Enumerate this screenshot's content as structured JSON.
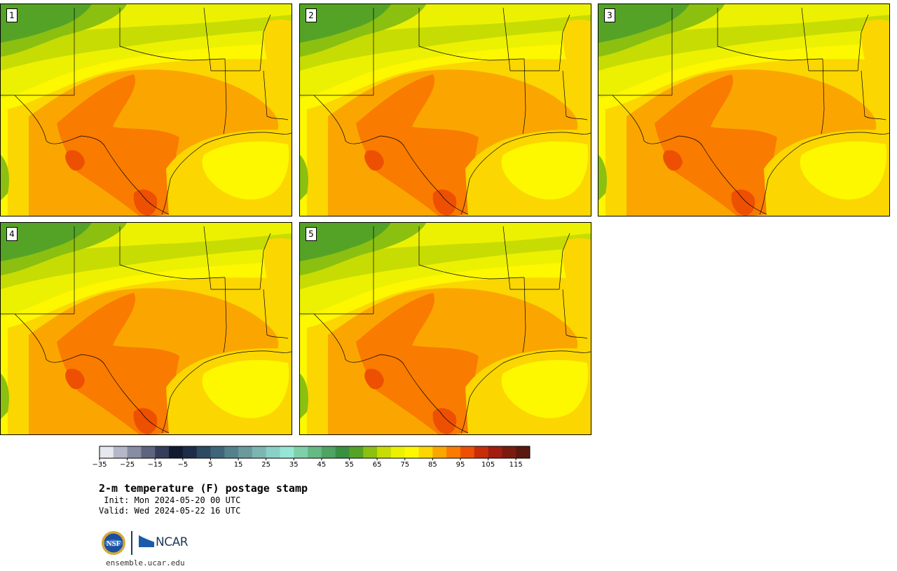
{
  "title": "2-m temperature (F) postage stamp",
  "init": " Init: Mon 2024-05-20 00 UTC",
  "valid": "Valid: Wed 2024-05-22 16 UTC",
  "site": "ensemble.ucar.edu",
  "logos": {
    "nsf": "NSF",
    "ncar": "NCAR"
  },
  "members": [
    "1",
    "2",
    "3",
    "4",
    "5"
  ],
  "colorbar": {
    "variable": "2-m temperature",
    "units": "F",
    "levels": [
      -35,
      -30,
      -25,
      -20,
      -15,
      -10,
      -5,
      0,
      5,
      10,
      15,
      20,
      25,
      30,
      35,
      40,
      45,
      50,
      55,
      60,
      65,
      70,
      75,
      80,
      85,
      90,
      95,
      100,
      105,
      110,
      115,
      120
    ],
    "tick_labels": [
      "−35",
      "−25",
      "−15",
      "−5",
      "5",
      "15",
      "25",
      "35",
      "45",
      "55",
      "65",
      "75",
      "85",
      "95",
      "105",
      "115"
    ],
    "colors": [
      "#e5e8ee",
      "#b3b7c7",
      "#888da3",
      "#5d6480",
      "#343e5c",
      "#101b33",
      "#1d2c48",
      "#2d4a63",
      "#3e6579",
      "#54818b",
      "#6b9a9d",
      "#7cb5b1",
      "#89d0c6",
      "#96e6d6",
      "#7fcfaa",
      "#65b984",
      "#4fa463",
      "#3a9042",
      "#55a326",
      "#8bc010",
      "#c7dc02",
      "#ecf102",
      "#fdf700",
      "#fbd600",
      "#fba600",
      "#f97b00",
      "#ed5002",
      "#c82d09",
      "#a11e0e",
      "#7b1b10",
      "#5a190f"
    ]
  },
  "map_colors": {
    "t100": "#ed5002",
    "t95": "#f97b00",
    "t90": "#fba600",
    "t85": "#fbd600",
    "t80": "#fdf700",
    "t75": "#ecf102",
    "t70": "#c7dc02",
    "t65": "#8bc010",
    "t60": "#55a326",
    "borders": "#000000"
  }
}
